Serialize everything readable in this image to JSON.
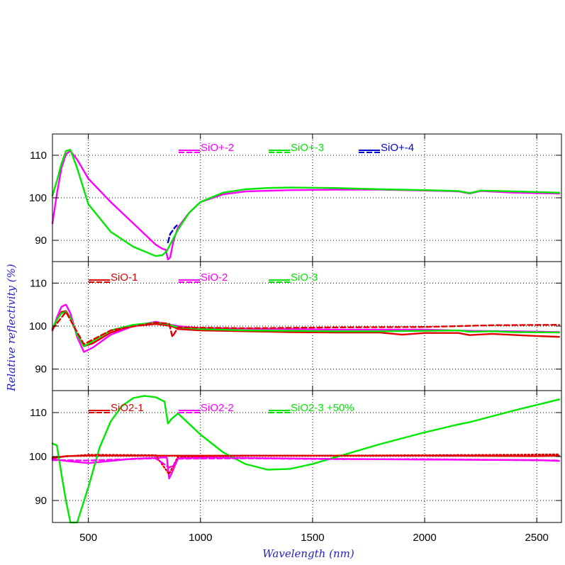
{
  "chart_data": {
    "type": "line",
    "xlabel": "Wavelength (nm)",
    "ylabel": "Relative reflectivity (%)",
    "xlim": [
      340,
      2610
    ],
    "x_ticks": [
      "500",
      "1000",
      "1500",
      "2000",
      "2500"
    ],
    "x_tick_values": [
      500,
      1000,
      1500,
      2000,
      2500
    ],
    "grid": true,
    "legend_placement": "top",
    "panels": [
      {
        "ylim": [
          85,
          115
        ],
        "y_ticks": [
          "90",
          "100",
          "110"
        ],
        "y_tick_values": [
          90,
          100,
          110
        ],
        "series": [
          {
            "name": "SiO+-2",
            "color": "#ff00ff",
            "dash": "solid",
            "x": [
              340,
              360,
              380,
              400,
              420,
              450,
              500,
              600,
              700,
              800,
              830,
              845,
              855,
              865,
              880,
              900,
              950,
              1000,
              1100,
              1200,
              1400,
              1600,
              1800,
              2000,
              2150,
              2200,
              2250,
              2400,
              2600
            ],
            "y": [
              94,
              101,
              107,
              110.3,
              111,
              109,
              104.5,
              99,
              94,
              89,
              88,
              87.8,
              85.5,
              86,
              90,
              93,
              96.5,
              99,
              100.8,
              101.5,
              101.8,
              101.9,
              101.9,
              101.7,
              101.5,
              101,
              101.6,
              101.2,
              101
            ]
          },
          {
            "name": "SiO+-3",
            "color": "#00e800",
            "dash": "solid",
            "x": [
              340,
              360,
              380,
              400,
              420,
              450,
              500,
              600,
              700,
              800,
              830,
              850,
              870,
              900,
              950,
              1000,
              1100,
              1200,
              1300,
              1400,
              1600,
              1800,
              2000,
              2150,
              2200,
              2250,
              2400,
              2600
            ],
            "y": [
              100.5,
              104,
              108,
              111,
              111.3,
              107,
              98.5,
              92,
              88.5,
              86.3,
              86.5,
              87.5,
              89.5,
              92.5,
              96.5,
              99,
              101.2,
              102,
              102.3,
              102.4,
              102.3,
              102,
              101.8,
              101.6,
              101.1,
              101.7,
              101.5,
              101.2
            ]
          },
          {
            "name": "SiO+-4",
            "color": "#0000cc",
            "dash": "dashed",
            "x": [
              855,
              865,
              875,
              885,
              895
            ],
            "y": [
              89.5,
              91.5,
              92.2,
              93,
              93.5
            ]
          }
        ]
      },
      {
        "ylim": [
          85,
          115
        ],
        "y_ticks": [
          "90",
          "100",
          "110"
        ],
        "y_tick_values": [
          90,
          100,
          110
        ],
        "series": [
          {
            "name": "SiO-1",
            "color": "#e00000",
            "dash": "solid",
            "x": [
              340,
              360,
              380,
              400,
              420,
              450,
              480,
              520,
              600,
              700,
              800,
              850,
              880,
              900,
              1000,
              1200,
              1400,
              1600,
              1800,
              1900,
              2000,
              2150,
              2200,
              2300,
              2450,
              2600
            ],
            "y": [
              99,
              101.5,
              103.3,
              103.5,
              102,
              98,
              95.3,
              96,
              98.5,
              100,
              100.5,
              100.2,
              99.8,
              99.3,
              99,
              98.8,
              98.6,
              98.5,
              98.5,
              98,
              98.4,
              98.4,
              97.9,
              98.2,
              97.8,
              97.5
            ]
          },
          {
            "name": "SiO-2",
            "color": "#ff00ff",
            "dash": "solid",
            "x": [
              340,
              360,
              380,
              400,
              420,
              450,
              480,
              520,
              600,
              700,
              800,
              850,
              900,
              1000,
              1200,
              1400,
              1600,
              1800,
              2000,
              2200,
              2400,
              2600
            ],
            "y": [
              99,
              102,
              104.5,
              105,
              103,
              97.5,
              94,
              95,
              98,
              100,
              101,
              100.5,
              100,
              99.5,
              99.4,
              99.3,
              99.2,
              99.2,
              99.2,
              98.9,
              98.8,
              98.6
            ]
          },
          {
            "name": "SiO-3",
            "color": "#00e800",
            "dash": "solid",
            "x": [
              340,
              360,
              380,
              400,
              420,
              450,
              480,
              520,
              600,
              700,
              800,
              850,
              900,
              1000,
              1200,
              1400,
              1600,
              1800,
              2000,
              2150,
              2200,
              2300,
              2400,
              2600
            ],
            "y": [
              99.5,
              101.5,
              103,
              103.3,
              102,
              98,
              95.3,
              96.5,
              99,
              100.3,
              100.8,
              100.5,
              99.7,
              99.3,
              99,
              98.9,
              98.8,
              98.8,
              98.9,
              99,
              98.7,
              98.8,
              98.6,
              98.5
            ]
          },
          {
            "name": "",
            "color": "#e00000",
            "dash": "dashed",
            "x": [
              340,
              400,
              480,
              600,
              800,
              860,
              875,
              900,
              1200,
              1600,
              2000,
              2300,
              2600
            ],
            "y": [
              99.3,
              103.3,
              95.8,
              99,
              100.8,
              100.6,
              97.5,
              99.7,
              99.5,
              99.7,
              99.8,
              100.2,
              100.3
            ]
          }
        ]
      },
      {
        "ylim": [
          85,
          115
        ],
        "y_ticks": [
          "90",
          "100",
          "110"
        ],
        "y_tick_values": [
          90,
          100,
          110
        ],
        "series": [
          {
            "name": "SiO2-1",
            "color": "#e00000",
            "dash": "solid",
            "x": [
              340,
              400,
              500,
              800,
              1000,
              1500,
              2000,
              2500,
              2600
            ],
            "y": [
              99.6,
              100.1,
              100.2,
              100.2,
              100.2,
              100.2,
              100.2,
              100.1,
              100.2
            ]
          },
          {
            "name": "SiO2-2",
            "color": "#ff00ff",
            "dash": "solid",
            "x": [
              340,
              400,
              500,
              600,
              700,
              850,
              860,
              870,
              900,
              1000,
              1500,
              2000,
              2500,
              2600
            ],
            "y": [
              99.4,
              99,
              98.5,
              99,
              99.5,
              99.8,
              95,
              96,
              99.6,
              99.8,
              99.5,
              99.3,
              99.2,
              99
            ]
          },
          {
            "name": "SiO2-3 +50%",
            "color": "#00e800",
            "dash": "solid",
            "x": [
              340,
              360,
              380,
              400,
              420,
              450,
              500,
              550,
              600,
              650,
              700,
              750,
              800,
              840,
              855,
              870,
              900,
              1000,
              1100,
              1200,
              1300,
              1400,
              1500,
              1600,
              1800,
              2000,
              2150,
              2200,
              2400,
              2600
            ],
            "y": [
              103,
              102.5,
              96,
              90,
              85,
              85,
              93,
              102,
              108,
              111.5,
              113.3,
              113.8,
              113.5,
              112.5,
              107.5,
              108.5,
              109.8,
              105,
              101,
              98.3,
              97,
              97.2,
              98.3,
              99.8,
              102.8,
              105.5,
              107.3,
              107.8,
              110.5,
              113
            ]
          },
          {
            "name": "",
            "color": "#e00000",
            "dash": "dotted",
            "x": [
              340,
              500,
              800,
              860,
              870,
              900,
              1200,
              1600,
              2000,
              2400,
              2600
            ],
            "y": [
              99.8,
              100.4,
              100.3,
              96,
              97,
              100,
              100.2,
              100.2,
              100.3,
              100.4,
              100.5
            ]
          },
          {
            "name": "",
            "color": "#ff00ff",
            "dash": "dashed",
            "x": [
              340,
              500,
              800,
              860,
              880,
              900,
              1200,
              1600,
              2000,
              2400,
              2600
            ],
            "y": [
              99.2,
              99.1,
              99.6,
              97.5,
              98,
              99.5,
              99.6,
              99.4,
              99.4,
              99.2,
              99.1
            ]
          }
        ]
      }
    ]
  },
  "legend_rows": [
    {
      "panel": 0,
      "entries": [
        {
          "label": "SiO+-2",
          "color": "#ff00ff"
        },
        {
          "label": "SiO+-3",
          "color": "#00e800"
        },
        {
          "label": "SiO+-4",
          "color": "#0000cc"
        }
      ]
    },
    {
      "panel": 1,
      "entries": [
        {
          "label": "SiO-1",
          "color": "#e00000"
        },
        {
          "label": "SiO-2",
          "color": "#ff00ff"
        },
        {
          "label": "SiO-3",
          "color": "#00e800"
        }
      ]
    },
    {
      "panel": 2,
      "entries": [
        {
          "label": "SiO2-1",
          "color": "#e00000"
        },
        {
          "label": "SiO2-2",
          "color": "#ff00ff"
        },
        {
          "label": "SiO2-3 +50%",
          "color": "#00e800"
        }
      ]
    }
  ]
}
